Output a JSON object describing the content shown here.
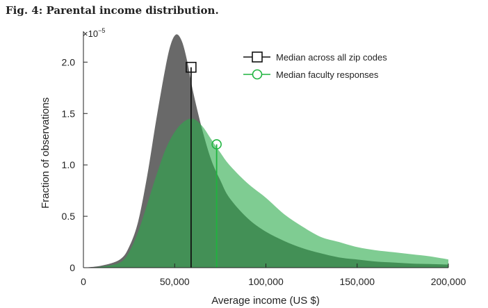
{
  "figure": {
    "title": "Fig. 4: Parental income distribution."
  },
  "chart_data": {
    "type": "area",
    "xlabel": "Average income (US $)",
    "ylabel": "Fraction of observations",
    "y_multiplier": "×10",
    "y_multiplier_exp": "−5",
    "xlim": [
      0,
      200000
    ],
    "ylim": [
      0,
      2.3
    ],
    "x_ticks": [
      0,
      50000,
      100000,
      150000,
      200000
    ],
    "x_tick_labels": [
      "0",
      "50,000",
      "100,000",
      "150,000",
      "200,000"
    ],
    "y_ticks": [
      0,
      0.5,
      1.0,
      1.5,
      2.0
    ],
    "y_tick_labels": [
      "0",
      "0.5",
      "1.0",
      "1.5",
      "2.0"
    ],
    "grid": false,
    "legend_position": "top-right",
    "series": [
      {
        "name": "Median across all zip codes",
        "color": "#696969",
        "median_line_color": "#111111",
        "marker": "square",
        "median_x": 59000,
        "median_y": 1.95,
        "x": [
          0,
          10000,
          20000,
          25000,
          30000,
          35000,
          40000,
          45000,
          48000,
          51000,
          54000,
          57000,
          60000,
          65000,
          70000,
          75000,
          80000,
          90000,
          100000,
          110000,
          120000,
          130000,
          140000,
          150000,
          160000,
          170000,
          180000,
          190000,
          200000
        ],
        "y": [
          0,
          0.02,
          0.08,
          0.2,
          0.45,
          0.9,
          1.45,
          1.95,
          2.18,
          2.27,
          2.2,
          2.0,
          1.72,
          1.35,
          1.05,
          0.85,
          0.68,
          0.48,
          0.35,
          0.26,
          0.19,
          0.14,
          0.1,
          0.08,
          0.06,
          0.05,
          0.04,
          0.035,
          0.03
        ]
      },
      {
        "name": "Median faculty responses",
        "color": "#2aaa4a",
        "median_line_color": "#1fb43f",
        "marker": "circle",
        "median_x": 73000,
        "median_y": 1.2,
        "x": [
          0,
          10000,
          20000,
          25000,
          30000,
          35000,
          40000,
          45000,
          50000,
          55000,
          60000,
          65000,
          70000,
          75000,
          80000,
          90000,
          100000,
          110000,
          120000,
          130000,
          140000,
          150000,
          160000,
          170000,
          180000,
          190000,
          200000
        ],
        "y": [
          0,
          0.01,
          0.05,
          0.15,
          0.35,
          0.62,
          0.9,
          1.15,
          1.32,
          1.42,
          1.45,
          1.38,
          1.25,
          1.12,
          1.0,
          0.82,
          0.68,
          0.52,
          0.4,
          0.3,
          0.25,
          0.2,
          0.17,
          0.15,
          0.13,
          0.11,
          0.08
        ]
      }
    ]
  }
}
